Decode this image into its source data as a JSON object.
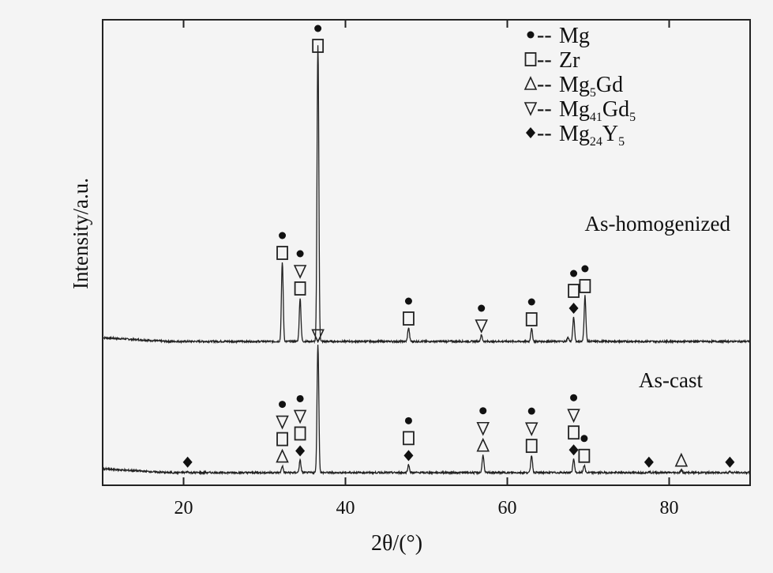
{
  "chart_data": {
    "type": "line",
    "xlabel": "2θ/(°)",
    "ylabel": "Intensity/a.u.",
    "xlim": [
      10,
      90
    ],
    "x_ticks": [
      20,
      40,
      60,
      80
    ],
    "grid": false,
    "legend_position": "top-right",
    "legend": [
      {
        "marker": "filled-circle",
        "label": "Mg",
        "label_parts": [
          [
            "Mg",
            ""
          ]
        ]
      },
      {
        "marker": "square",
        "label": "Zr",
        "label_parts": [
          [
            "Zr",
            ""
          ]
        ]
      },
      {
        "marker": "triangle-up",
        "label": "Mg5Gd",
        "label_parts": [
          [
            "Mg",
            "5"
          ],
          [
            "Gd",
            ""
          ]
        ]
      },
      {
        "marker": "triangle-down",
        "label": "Mg41Gd5",
        "label_parts": [
          [
            "Mg",
            "41"
          ],
          [
            "Gd",
            "5"
          ]
        ]
      },
      {
        "marker": "filled-diamond",
        "label": "Mg24Y5",
        "label_parts": [
          [
            "Mg",
            "24"
          ],
          [
            "Y",
            "5"
          ]
        ]
      }
    ],
    "series": [
      {
        "name": "As-homogenized",
        "peaks": [
          {
            "x": 32.2,
            "height": 100,
            "markers": [
              "square",
              "filled-circle"
            ]
          },
          {
            "x": 34.4,
            "height": 55,
            "markers": [
              "square",
              "triangle-down",
              "filled-circle"
            ]
          },
          {
            "x": 36.6,
            "height": 375,
            "markers": [
              "square",
              "filled-circle"
            ]
          },
          {
            "x": 47.8,
            "height": 17,
            "markers": [
              "square",
              "filled-circle"
            ]
          },
          {
            "x": 56.8,
            "height": 8,
            "markers": [
              "triangle-down",
              "filled-circle"
            ]
          },
          {
            "x": 63.0,
            "height": 16,
            "markers": [
              "square",
              "filled-circle"
            ]
          },
          {
            "x": 67.5,
            "height": 5,
            "markers": []
          },
          {
            "x": 68.2,
            "height": 30,
            "markers": [
              "filled-diamond",
              "square",
              "filled-circle"
            ]
          },
          {
            "x": 69.6,
            "height": 58,
            "markers": [
              "square",
              "filled-circle"
            ]
          }
        ]
      },
      {
        "name": "As-cast",
        "peaks": [
          {
            "x": 20.5,
            "height": 3,
            "markers": [
              "filled-diamond"
            ]
          },
          {
            "x": 32.2,
            "height": 20,
            "markers": [
              "triangle-up",
              "square",
              "triangle-down",
              "filled-circle"
            ]
          },
          {
            "x": 34.4,
            "height": 37,
            "markers": [
              "filled-diamond",
              "square",
              "triangle-down",
              "filled-circle"
            ]
          },
          {
            "x": 36.6,
            "height": 385,
            "markers": [
              "triangle-down"
            ]
          },
          {
            "x": 47.8,
            "height": 23,
            "markers": [
              "filled-diamond",
              "square",
              "filled-circle"
            ]
          },
          {
            "x": 57.0,
            "height": 53,
            "markers": [
              "triangle-up",
              "triangle-down",
              "filled-circle"
            ]
          },
          {
            "x": 63.0,
            "height": 52,
            "markers": [
              "square",
              "triangle-down",
              "filled-circle"
            ]
          },
          {
            "x": 68.2,
            "height": 40,
            "markers": [
              "filled-diamond",
              "square",
              "triangle-down",
              "filled-circle"
            ]
          },
          {
            "x": 69.5,
            "height": 22,
            "markers": [
              "square",
              "filled-circle"
            ]
          },
          {
            "x": 77.5,
            "height": 3,
            "markers": [
              "filled-diamond"
            ]
          },
          {
            "x": 81.5,
            "height": 8,
            "markers": [
              "triangle-up"
            ]
          },
          {
            "x": 87.5,
            "height": 3,
            "markers": [
              "filled-diamond"
            ]
          }
        ]
      }
    ]
  }
}
